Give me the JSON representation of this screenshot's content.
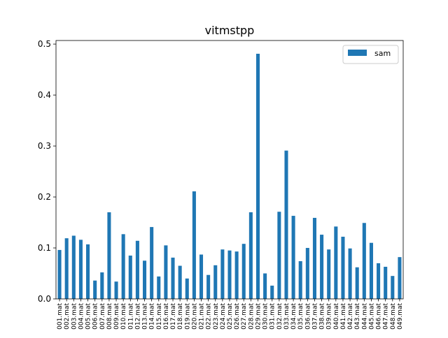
{
  "chart_data": {
    "type": "bar",
    "title": "vitmstpp",
    "xlabel": "",
    "ylabel": "",
    "ylim": [
      0,
      0.5
    ],
    "yticks": [
      "0.0",
      "0.1",
      "0.2",
      "0.3",
      "0.4",
      "0.5"
    ],
    "ytick_values": [
      0.0,
      0.1,
      0.2,
      0.3,
      0.4,
      0.5
    ],
    "grid": false,
    "legend_position": "top-right",
    "categories": [
      "001.mat",
      "002.mat",
      "003.mat",
      "004.mat",
      "005.mat",
      "006.mat",
      "007.mat",
      "008.mat",
      "009.mat",
      "010.mat",
      "011.mat",
      "012.mat",
      "013.mat",
      "014.mat",
      "015.mat",
      "016.mat",
      "017.mat",
      "018.mat",
      "019.mat",
      "020.mat",
      "021.mat",
      "022.mat",
      "023.mat",
      "024.mat",
      "025.mat",
      "026.mat",
      "027.mat",
      "028.mat",
      "029.mat",
      "030.mat",
      "031.mat",
      "032.mat",
      "033.mat",
      "034.mat",
      "035.mat",
      "036.mat",
      "037.mat",
      "038.mat",
      "039.mat",
      "040.mat",
      "041.mat",
      "042.mat",
      "043.mat",
      "044.mat",
      "045.mat",
      "046.mat",
      "047.mat",
      "048.mat",
      "049.mat"
    ],
    "series": [
      {
        "name": "sam",
        "color": "#1f77b4",
        "values": [
          0.096,
          0.119,
          0.124,
          0.116,
          0.107,
          0.036,
          0.052,
          0.17,
          0.034,
          0.127,
          0.085,
          0.114,
          0.075,
          0.141,
          0.044,
          0.105,
          0.081,
          0.065,
          0.04,
          0.211,
          0.087,
          0.047,
          0.066,
          0.097,
          0.095,
          0.093,
          0.108,
          0.17,
          0.481,
          0.05,
          0.026,
          0.171,
          0.291,
          0.163,
          0.074,
          0.1,
          0.159,
          0.126,
          0.097,
          0.142,
          0.122,
          0.099,
          0.062,
          0.149,
          0.11,
          0.07,
          0.063,
          0.045,
          0.082
        ]
      }
    ]
  }
}
